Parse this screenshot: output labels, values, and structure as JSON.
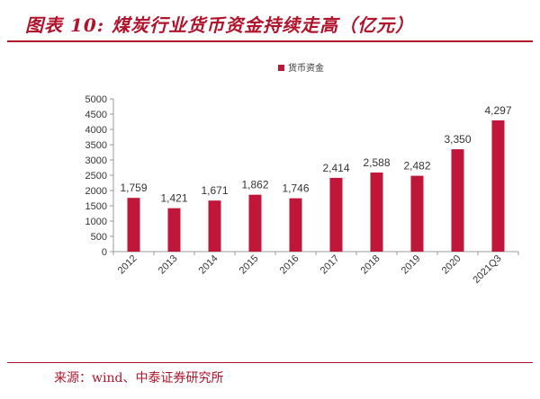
{
  "figure": {
    "title": "图表 10:  煤炭行业货币资金持续走高（亿元）",
    "source": "来源：wind、中泰证券研究所"
  },
  "colors": {
    "bar": "#c0163a",
    "accent": "#b0142c",
    "axis": "#999999",
    "text": "#333333"
  },
  "chart_data": {
    "type": "bar",
    "categories": [
      "2012",
      "2013",
      "2014",
      "2015",
      "2016",
      "2017",
      "2018",
      "2019",
      "2020",
      "2021Q3"
    ],
    "series": [
      {
        "name": "货币资金",
        "values": [
          1759,
          1421,
          1671,
          1862,
          1746,
          2414,
          2588,
          2482,
          3350,
          4297
        ],
        "labels": [
          "1,759",
          "1,421",
          "1,671",
          "1,862",
          "1,746",
          "2,414",
          "2,588",
          "2,482",
          "3,350",
          "4,297"
        ]
      }
    ],
    "ylim": [
      0,
      5000
    ],
    "yticks": [
      "0",
      "500",
      "1000",
      "1500",
      "2000",
      "2500",
      "3000",
      "3500",
      "4000",
      "4500",
      "5000"
    ],
    "xlabel": "",
    "ylabel": "",
    "legend": "top-center",
    "grid": false
  }
}
